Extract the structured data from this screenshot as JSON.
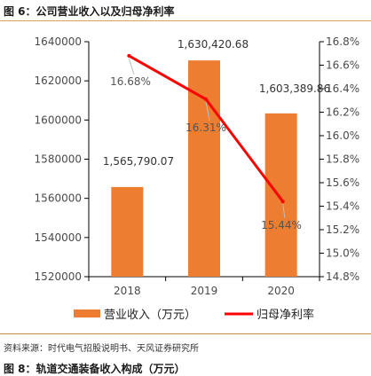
{
  "figure": {
    "title": "图 6：公司营业收入以及归母净利率",
    "source": "资料来源：时代电气招股说明书、天风证券研究所",
    "next_title": "图 8：轨道交通装备收入构成（万元）"
  },
  "colors": {
    "bar": "#ed7d31",
    "line": "#ff0000",
    "accent_rule": "#d9a05b",
    "axis": "#000000"
  },
  "chart_data": {
    "type": "bar+line",
    "categories": [
      "2018",
      "2019",
      "2020"
    ],
    "series": [
      {
        "name": "营业收入（万元）",
        "type": "bar",
        "axis": "left",
        "values": [
          1565790.07,
          1630420.68,
          1603389.86
        ],
        "labels": [
          "1,565,790.07",
          "1,630,420.68",
          "1,603,389.86"
        ]
      },
      {
        "name": "归母净利率",
        "type": "line",
        "axis": "right",
        "values": [
          16.68,
          16.31,
          15.44
        ],
        "labels": [
          "16.68%",
          "16.31%",
          "15.44%"
        ]
      }
    ],
    "y_left": {
      "min": 1520000,
      "max": 1640000,
      "ticks": [
        "1520000",
        "1540000",
        "1560000",
        "1580000",
        "1600000",
        "1620000",
        "1640000"
      ]
    },
    "y_right": {
      "min": 14.8,
      "max": 16.8,
      "ticks": [
        "14.8%",
        "15.0%",
        "15.2%",
        "15.4%",
        "15.6%",
        "15.8%",
        "16.0%",
        "16.2%",
        "16.4%",
        "16.6%",
        "16.8%"
      ]
    },
    "legend_position": "bottom",
    "grid": false
  }
}
